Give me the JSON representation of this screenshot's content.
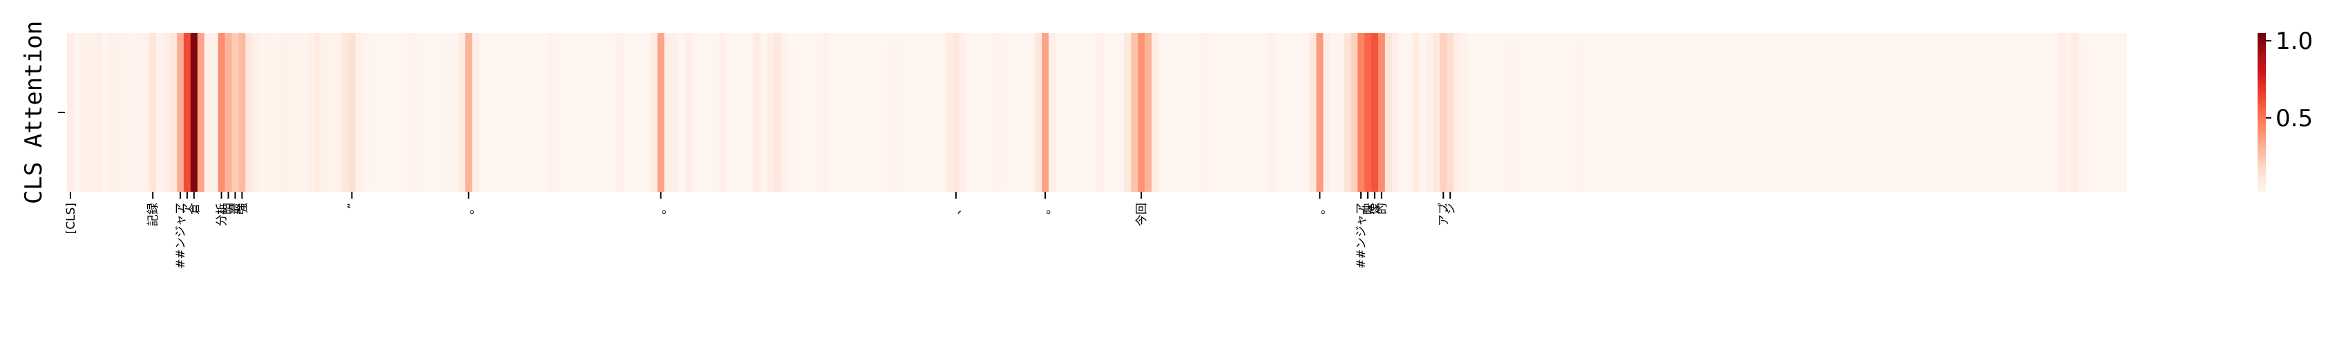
{
  "chart_data": {
    "type": "heatmap",
    "title": "",
    "ylabel": "CLS Attention",
    "xlabel": "",
    "n_tokens": 300,
    "tokens": [
      {
        "index": 0,
        "label": "[CLS]"
      },
      {
        "index": 12,
        "label": "記録"
      },
      {
        "index": 16,
        "label": "##ンジャア"
      },
      {
        "index": 17,
        "label": "ア"
      },
      {
        "index": 18,
        "label": "倉"
      },
      {
        "index": 22,
        "label": "分析"
      },
      {
        "index": 23,
        "label": "明"
      },
      {
        "index": 24,
        "label": "最"
      },
      {
        "index": 25,
        "label": "強"
      },
      {
        "index": 41,
        "label": "”"
      },
      {
        "index": 58,
        "label": "。"
      },
      {
        "index": 86,
        "label": "。"
      },
      {
        "index": 129,
        "label": "、"
      },
      {
        "index": 142,
        "label": "。"
      },
      {
        "index": 156,
        "label": "今回"
      },
      {
        "index": 182,
        "label": "。"
      },
      {
        "index": 188,
        "label": "##ンジャア"
      },
      {
        "index": 189,
        "label": "映"
      },
      {
        "index": 190,
        "label": "像"
      },
      {
        "index": 191,
        "label": "的"
      },
      {
        "index": 200,
        "label": "アプ"
      },
      {
        "index": 201,
        "label": "ジ"
      }
    ],
    "values_sparse": [
      [
        0,
        0.06
      ],
      [
        1,
        0.03
      ],
      [
        2,
        0.05
      ],
      [
        3,
        0.04
      ],
      [
        4,
        0.06
      ],
      [
        5,
        0.03
      ],
      [
        6,
        0.05
      ],
      [
        7,
        0.04
      ],
      [
        8,
        0.03
      ],
      [
        9,
        0.02
      ],
      [
        10,
        0.03
      ],
      [
        11,
        0.05
      ],
      [
        12,
        0.12
      ],
      [
        13,
        0.04
      ],
      [
        14,
        0.06
      ],
      [
        15,
        0.1
      ],
      [
        16,
        0.32
      ],
      [
        17,
        0.62
      ],
      [
        18,
        1.0
      ],
      [
        19,
        0.35
      ],
      [
        20,
        0.05
      ],
      [
        21,
        0.04
      ],
      [
        22,
        0.42
      ],
      [
        23,
        0.3
      ],
      [
        24,
        0.22
      ],
      [
        25,
        0.28
      ],
      [
        26,
        0.1
      ],
      [
        27,
        0.05
      ],
      [
        28,
        0.03
      ],
      [
        29,
        0.04
      ],
      [
        30,
        0.03
      ],
      [
        31,
        0.05
      ],
      [
        32,
        0.03
      ],
      [
        33,
        0.04
      ],
      [
        34,
        0.03
      ],
      [
        35,
        0.05
      ],
      [
        36,
        0.08
      ],
      [
        37,
        0.05
      ],
      [
        38,
        0.03
      ],
      [
        39,
        0.04
      ],
      [
        40,
        0.1
      ],
      [
        41,
        0.14
      ],
      [
        42,
        0.05
      ],
      [
        43,
        0.03
      ],
      [
        50,
        0.04
      ],
      [
        55,
        0.03
      ],
      [
        57,
        0.08
      ],
      [
        58,
        0.3
      ],
      [
        59,
        0.06
      ],
      [
        70,
        0.04
      ],
      [
        80,
        0.05
      ],
      [
        85,
        0.08
      ],
      [
        86,
        0.35
      ],
      [
        87,
        0.06
      ],
      [
        88,
        0.05
      ],
      [
        90,
        0.06
      ],
      [
        95,
        0.05
      ],
      [
        100,
        0.08
      ],
      [
        102,
        0.06
      ],
      [
        103,
        0.1
      ],
      [
        104,
        0.04
      ],
      [
        110,
        0.04
      ],
      [
        120,
        0.03
      ],
      [
        128,
        0.08
      ],
      [
        129,
        0.1
      ],
      [
        130,
        0.05
      ],
      [
        135,
        0.04
      ],
      [
        141,
        0.1
      ],
      [
        142,
        0.35
      ],
      [
        143,
        0.06
      ],
      [
        150,
        0.05
      ],
      [
        154,
        0.1
      ],
      [
        155,
        0.25
      ],
      [
        156,
        0.4
      ],
      [
        157,
        0.3
      ],
      [
        158,
        0.08
      ],
      [
        165,
        0.04
      ],
      [
        175,
        0.05
      ],
      [
        181,
        0.1
      ],
      [
        182,
        0.38
      ],
      [
        183,
        0.06
      ],
      [
        186,
        0.12
      ],
      [
        187,
        0.2
      ],
      [
        188,
        0.45
      ],
      [
        189,
        0.55
      ],
      [
        190,
        0.6
      ],
      [
        191,
        0.42
      ],
      [
        192,
        0.12
      ],
      [
        193,
        0.06
      ],
      [
        196,
        0.08
      ],
      [
        198,
        0.05
      ],
      [
        199,
        0.1
      ],
      [
        200,
        0.2
      ],
      [
        201,
        0.16
      ],
      [
        202,
        0.06
      ],
      [
        203,
        0.04
      ],
      [
        210,
        0.03
      ],
      [
        220,
        0.03
      ],
      [
        240,
        0.02
      ],
      [
        260,
        0.02
      ],
      [
        280,
        0.02
      ],
      [
        290,
        0.06
      ],
      [
        291,
        0.04
      ],
      [
        292,
        0.08
      ],
      [
        293,
        0.03
      ],
      [
        299,
        0.03
      ]
    ],
    "default_value": 0.02,
    "colorbar": {
      "colormap": "Reds",
      "min": 0.02,
      "max": 1.05,
      "ticks": [
        {
          "value": 0.5,
          "label": "0.5"
        },
        {
          "value": 1.0,
          "label": "1.0"
        }
      ]
    }
  }
}
